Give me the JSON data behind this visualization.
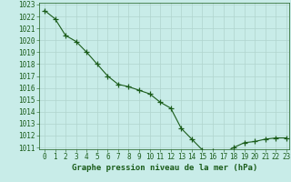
{
  "x": [
    0,
    1,
    2,
    3,
    4,
    5,
    6,
    7,
    8,
    9,
    10,
    11,
    12,
    13,
    14,
    15,
    16,
    17,
    18,
    19,
    20,
    21,
    22,
    23
  ],
  "y": [
    1022.5,
    1021.8,
    1020.4,
    1019.9,
    1019.0,
    1018.0,
    1017.0,
    1016.3,
    1016.1,
    1015.8,
    1015.5,
    1014.8,
    1014.3,
    1012.6,
    1011.7,
    1010.8,
    1010.7,
    1010.5,
    1011.0,
    1011.4,
    1011.5,
    1011.7,
    1011.8,
    1011.8
  ],
  "ylim_min": 1011,
  "ylim_max": 1023,
  "xlim_min": 0,
  "xlim_max": 23,
  "yticks": [
    1011,
    1012,
    1013,
    1014,
    1015,
    1016,
    1017,
    1018,
    1019,
    1020,
    1021,
    1022,
    1023
  ],
  "xticks": [
    0,
    1,
    2,
    3,
    4,
    5,
    6,
    7,
    8,
    9,
    10,
    11,
    12,
    13,
    14,
    15,
    16,
    17,
    18,
    19,
    20,
    21,
    22,
    23
  ],
  "line_color": "#1a5c1a",
  "marker": "+",
  "marker_size": 4,
  "marker_color": "#1a5c1a",
  "bg_color": "#c8ece8",
  "grid_color": "#b0d4ce",
  "text_color": "#1a5c1a",
  "xlabel": "Graphe pression niveau de la mer (hPa)",
  "xlabel_fontsize": 6.5,
  "tick_fontsize": 5.5,
  "fig_bg": "#c8ece8",
  "linewidth": 0.8,
  "marker_linewidth": 0.9
}
